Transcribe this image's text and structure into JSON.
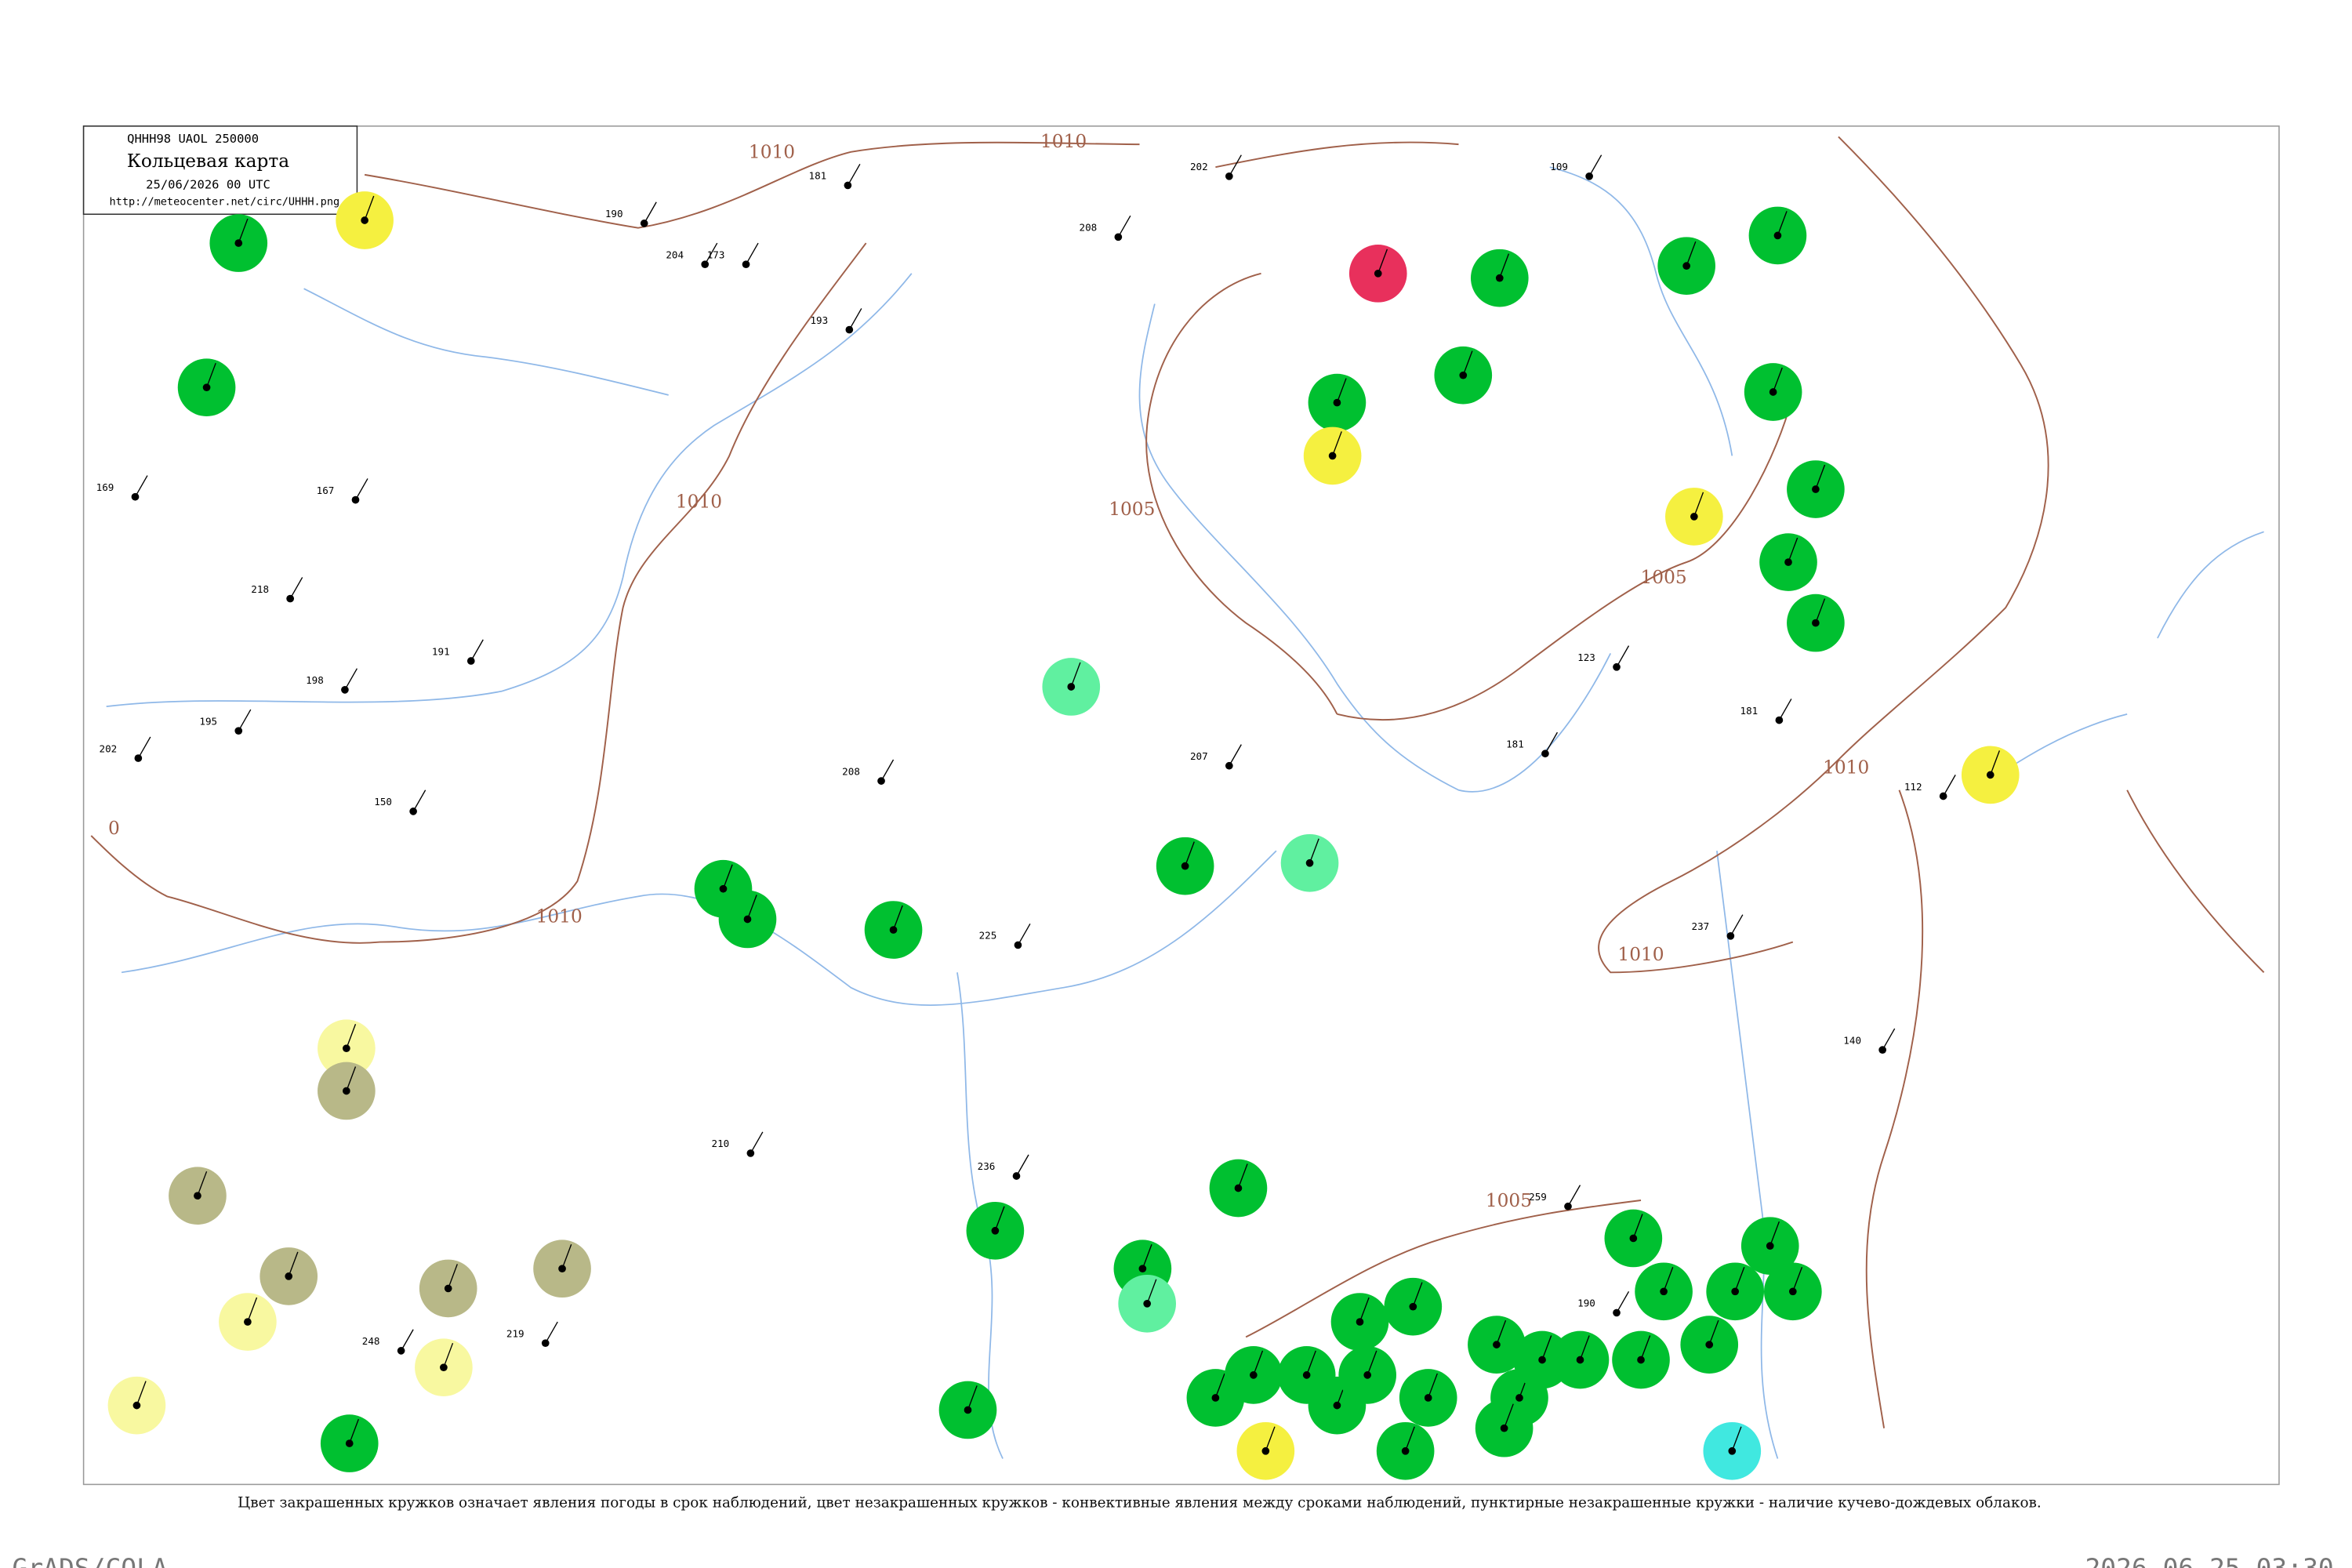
{
  "header": {
    "code": "QHHH98  UAOL  250000",
    "title": "Кольцевая карта",
    "date": "25/06/2026 00 UTC",
    "url": "http://meteocenter.net/circ/UHHH.png"
  },
  "isobar_labels": [
    "1010",
    "1010",
    "1010",
    "1005",
    "1005",
    "1010",
    "1005",
    "1010",
    "1010",
    "0"
  ],
  "stations": [
    {
      "color": "#00c030"
    },
    {
      "color": "#00c030"
    },
    {
      "color": "#00c030"
    },
    {
      "color": "#00c030"
    },
    {
      "color": "#00c030"
    },
    {
      "color": "#00c030"
    },
    {
      "color": "#00c030"
    },
    {
      "color": "#00c030"
    },
    {
      "color": "#00c030"
    },
    {
      "color": "#00c030"
    },
    {
      "color": "#00c030"
    },
    {
      "color": "#00c030"
    },
    {
      "color": "#00c030"
    },
    {
      "color": "#00c030"
    },
    {
      "color": "#00c030"
    },
    {
      "color": "#00c030"
    },
    {
      "color": "#00c030"
    },
    {
      "color": "#00c030"
    },
    {
      "color": "#00c030"
    },
    {
      "color": "#00c030"
    },
    {
      "color": "#00c030"
    },
    {
      "color": "#00c030"
    },
    {
      "color": "#00c030"
    },
    {
      "color": "#00c030"
    },
    {
      "color": "#00c030"
    },
    {
      "color": "#00c030"
    },
    {
      "color": "#00c030"
    },
    {
      "color": "#00c030"
    },
    {
      "color": "#00c030"
    },
    {
      "color": "#00c030"
    },
    {
      "color": "#00c030"
    },
    {
      "color": "#00c030"
    },
    {
      "color": "#00c030"
    },
    {
      "color": "#00c030"
    },
    {
      "color": "#00c030"
    },
    {
      "color": "#00c030"
    },
    {
      "color": "#00c030"
    },
    {
      "color": "#00c030"
    },
    {
      "color": "#00c030"
    },
    {
      "color": "#00c030"
    },
    {
      "color": "#00c030"
    },
    {
      "color": "#e8305c"
    },
    {
      "color": "#f5f040"
    },
    {
      "color": "#f5f040"
    },
    {
      "color": "#f5f040"
    },
    {
      "color": "#f5f040"
    },
    {
      "color": "#f5f040"
    },
    {
      "color": "#f8f8a0"
    },
    {
      "color": "#f8f8a0"
    },
    {
      "color": "#f8f8a0"
    },
    {
      "color": "#f8f8a0"
    },
    {
      "color": "#b8b888"
    },
    {
      "color": "#b8b888"
    },
    {
      "color": "#b8b888"
    },
    {
      "color": "#b8b888"
    },
    {
      "color": "#b8b888"
    },
    {
      "color": "#60f0a0"
    },
    {
      "color": "#60f0a0"
    },
    {
      "color": "#60f0a0"
    },
    {
      "color": "#40e8e0"
    }
  ],
  "plain_stations": [
    "109",
    "202",
    "208",
    "181",
    "190",
    "204",
    "173",
    "193",
    "167",
    "169",
    "218",
    "198",
    "191",
    "195",
    "202",
    "150",
    "208",
    "225",
    "207",
    "181",
    "123",
    "237",
    "140",
    "210",
    "219",
    "248",
    "236",
    "259",
    "190",
    "181",
    "112"
  ],
  "caption": "Цвет закрашенных кружков означает явления погоды в срок наблюдений, цвет незакрашенных кружков - конвективные явления между сроками наблюдений, пунктирные незакрашенные кружки - наличие кучево-дождевых облаков.",
  "footer": {
    "left": "GrADS/COLA",
    "right": "2026-06-25-03:30"
  }
}
